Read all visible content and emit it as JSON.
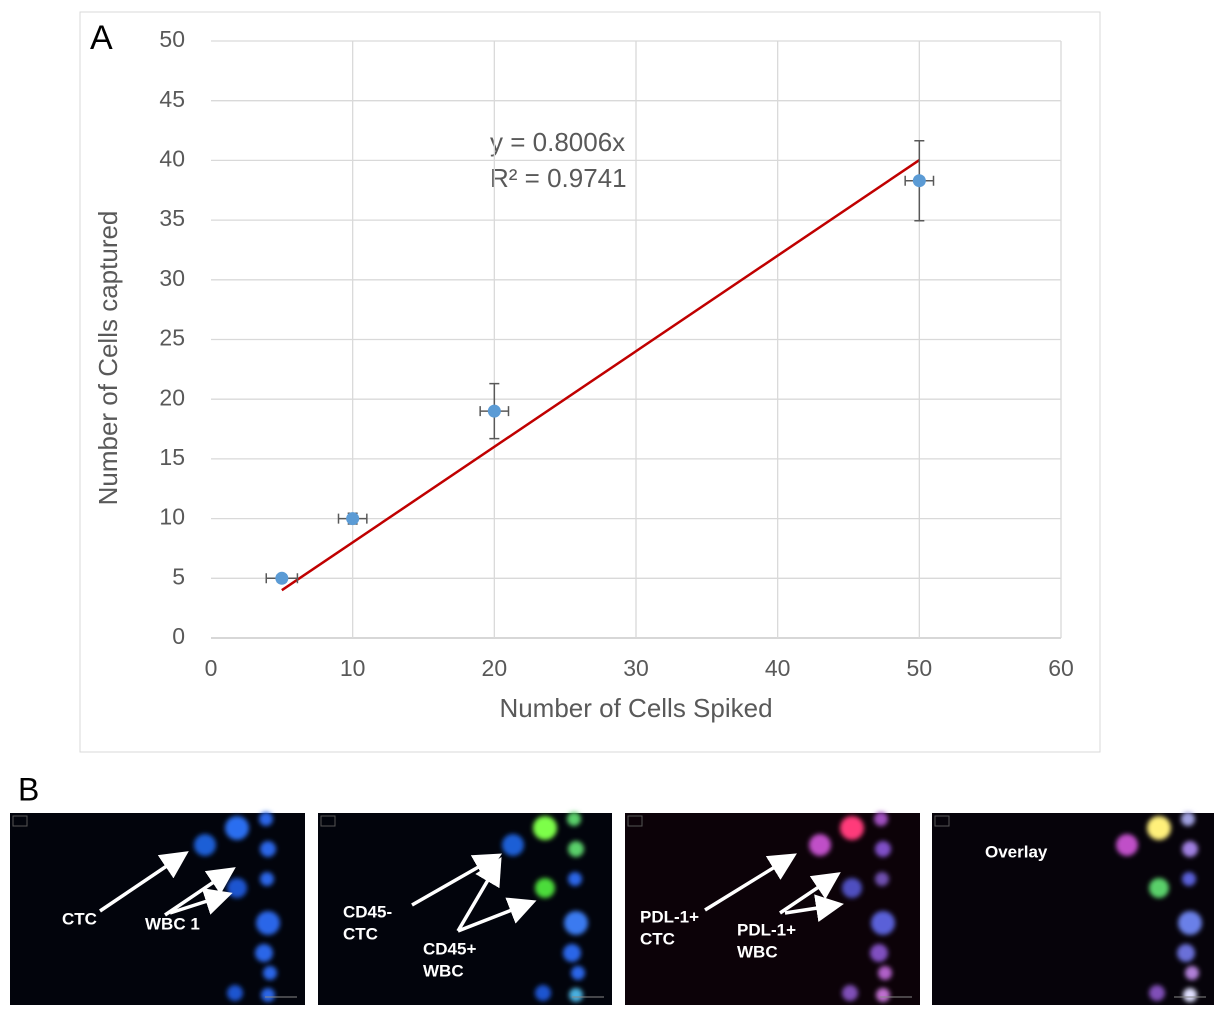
{
  "panels": {
    "a": "A",
    "b": "B"
  },
  "chart_data": {
    "type": "scatter",
    "x": [
      5,
      10,
      20,
      50
    ],
    "y": [
      5,
      10,
      19,
      38.3
    ],
    "x_err": [
      1.1,
      1.0,
      1.0,
      1.0
    ],
    "y_err": [
      0.3,
      0.45,
      2.3,
      3.35
    ],
    "color": "#5b9bd5",
    "error_color": "#595959",
    "trendline": {
      "slope": 0.8006,
      "color": "#c00000",
      "equation": "y = 0.8006x",
      "r2": "R² = 0.9741"
    },
    "xlabel": "Number of Cells Spiked",
    "ylabel": "Number of Cells captured",
    "xlim": [
      0,
      60
    ],
    "xticks": [
      0,
      10,
      20,
      30,
      40,
      50,
      60
    ],
    "ylim": [
      0,
      50
    ],
    "yticks": [
      0,
      5,
      10,
      15,
      20,
      25,
      30,
      35,
      40,
      45,
      50
    ],
    "grid": true
  },
  "images": [
    {
      "labels": [
        [
          "CTC"
        ],
        [
          "WBC 1"
        ]
      ]
    },
    {
      "labels": [
        [
          "CD45-",
          "CTC"
        ],
        [
          "CD45+",
          "WBC"
        ]
      ]
    },
    {
      "labels": [
        [
          "PDL-1+",
          "CTC"
        ],
        [
          "PDL-1+",
          "WBC"
        ]
      ]
    },
    {
      "labels": [
        [
          "Overlay"
        ]
      ]
    }
  ]
}
